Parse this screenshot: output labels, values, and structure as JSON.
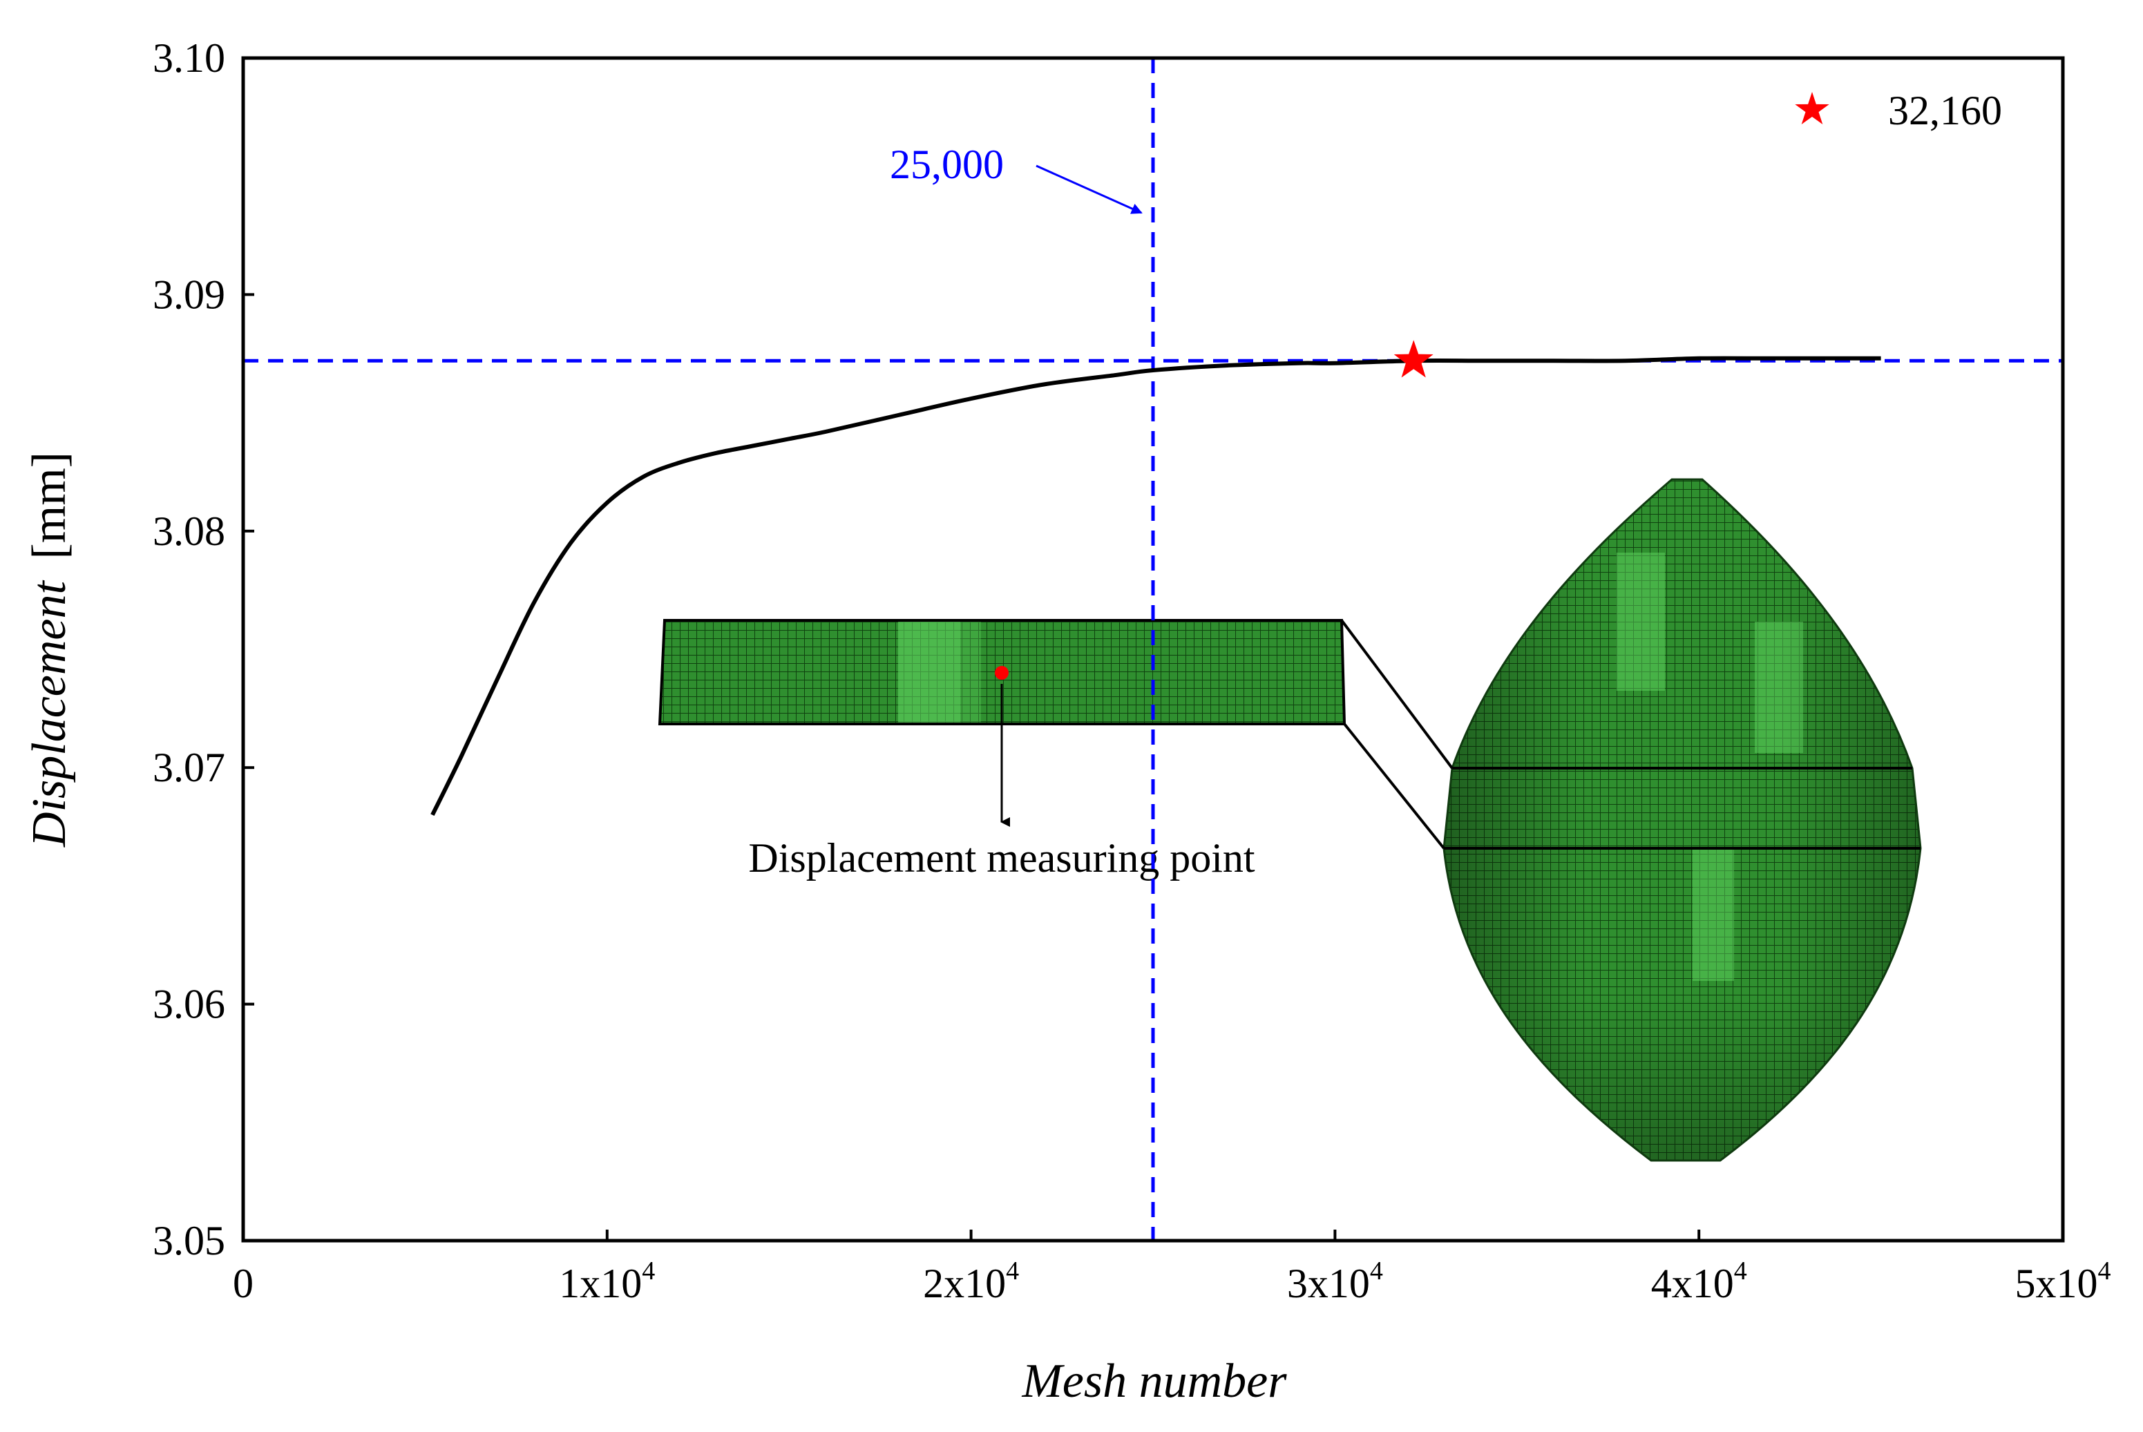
{
  "chart_data": {
    "type": "line",
    "title": "",
    "xlabel": "Mesh number",
    "ylabel_italic": "Displacement",
    "ylabel_unit": "[mm]",
    "xlim": [
      0,
      50000
    ],
    "ylim": [
      3.05,
      3.1
    ],
    "x_ticks": [
      {
        "value": 0,
        "label": "0",
        "exp": ""
      },
      {
        "value": 10000,
        "label": "1x10",
        "exp": "4"
      },
      {
        "value": 20000,
        "label": "2x10",
        "exp": "4"
      },
      {
        "value": 30000,
        "label": "3x10",
        "exp": "4"
      },
      {
        "value": 40000,
        "label": "4x10",
        "exp": "4"
      },
      {
        "value": 50000,
        "label": "5x10",
        "exp": "4"
      }
    ],
    "y_ticks": [
      {
        "value": 3.05,
        "label": "3.05"
      },
      {
        "value": 3.06,
        "label": "3.06"
      },
      {
        "value": 3.07,
        "label": "3.07"
      },
      {
        "value": 3.08,
        "label": "3.08"
      },
      {
        "value": 3.09,
        "label": "3.09"
      },
      {
        "value": 3.1,
        "label": "3.10"
      }
    ],
    "series": [
      {
        "name": "Displacement",
        "color": "#000000",
        "x": [
          5200,
          6000,
          7000,
          8000,
          9000,
          10000,
          11000,
          12000,
          13000,
          14000,
          15000,
          16000,
          18000,
          20000,
          22000,
          24000,
          25000,
          27000,
          29000,
          30000,
          32160,
          34000,
          36000,
          38000,
          40000,
          42000,
          44000,
          45000
        ],
        "values": [
          3.068,
          3.0705,
          3.0738,
          3.077,
          3.0795,
          3.0812,
          3.0823,
          3.0829,
          3.0833,
          3.0836,
          3.0839,
          3.0842,
          3.0849,
          3.0856,
          3.0862,
          3.0866,
          3.0868,
          3.087,
          3.0871,
          3.0871,
          3.0872,
          3.0872,
          3.0872,
          3.0872,
          3.0873,
          3.0873,
          3.0873,
          3.0873
        ]
      }
    ],
    "reference_lines": {
      "vertical_x": 25000,
      "horizontal_y": 3.0872,
      "color": "#0000ff"
    },
    "annotations": {
      "vline_label": "25,000",
      "vline_label_color": "#0000ff",
      "star_x": 32160,
      "star_y": 3.0872,
      "star_color": "#ff0000",
      "legend_label": "32,160",
      "measuring_point_label": "Displacement measuring point"
    },
    "colors": {
      "mesh_green": "#2e8b2e",
      "mesh_highlight": "#66dd66",
      "mesh_line": "#0d3d0d"
    }
  }
}
